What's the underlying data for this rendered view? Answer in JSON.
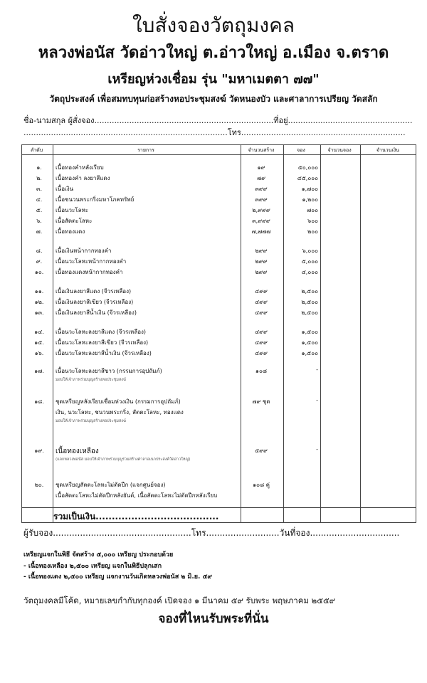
{
  "header": {
    "title": "ใบสั่งจองวัตถุมงคล",
    "subtitle": "หลวงพ่อนัส วัดอ่าวใหญ่ ต.อ่าวใหญ่ อ.เมือง จ.ตราด",
    "edition": "เหรียญห่วงเชื่อม  รุ่น \"มหาเมตตา ๗๗\"",
    "purpose": "วัตถุประสงค์ เพื่อสมทบทุนก่อสร้างหอประชุมสงฆ์ วัดหนองบัว  และศาลาการเปรียญ วัดสลัก"
  },
  "form": {
    "name_line": "ชื่อ-นามสกุล ผู้สั่งจอง........................................................................ที่อยู่..................................................",
    "phone_line": "..................................................................................โทร.................................................................."
  },
  "table": {
    "columns": [
      "ลำดับ",
      "รายการ",
      "จำนวนสร้าง",
      "จอง",
      "จำนวนจอง",
      "จำนวนเงิน"
    ],
    "rows": [
      {
        "no": "๑.",
        "item": "เนื้อทองคำหลังเรียบ",
        "qty": "๑๙",
        "price": "๕๐,๐๐๐"
      },
      {
        "no": "๒.",
        "item": "เนื้อทองคำ ลงยาสีแดง",
        "qty": "๗๙",
        "price": "๔๕,๐๐๐"
      },
      {
        "no": "๓.",
        "item": "เนื้อเงิน",
        "qty": "๓๙๙",
        "price": "๑,๗๐๐"
      },
      {
        "no": "๔.",
        "item": "เนื้อชนวนพระกริ่งมหาโภคทรัพย์",
        "qty": "๓๙๙",
        "price": "๑,๒๐๐"
      },
      {
        "no": "๕.",
        "item": "เนื้อนวะโลหะ",
        "qty": "๒,๙๙๙",
        "price": "๗๐๐"
      },
      {
        "no": "๖.",
        "item": "เนื้อสัตตะโลหะ",
        "qty": "๓,๙๙๙",
        "price": "๖๐๐"
      },
      {
        "no": "๗.",
        "item": "เนื้อทองแดง",
        "qty": "๗,๗๗๗",
        "price": "๒๐๐"
      },
      {
        "no": "๘.",
        "item": "เนื้อเงินหน้ากากทองคำ",
        "qty": "๒๙๙",
        "price": "๖,๐๐๐"
      },
      {
        "no": "๙.",
        "item": "เนื้อนวะโลหะหน้ากากทองคำ",
        "qty": "๒๙๙",
        "price": "๕,๐๐๐"
      },
      {
        "no": "๑๐.",
        "item": "เนื้อทองแดงหน้ากากทองคำ",
        "qty": "๒๙๙",
        "price": "๔,๐๐๐"
      },
      {
        "no": "๑๑.",
        "item": "เนื้อเงินลงยาสีแดง (จีวรเหลือง)",
        "qty": "๔๙๙",
        "price": "๒,๕๐๐"
      },
      {
        "no": "๑๒.",
        "item": "เนื้อเงินลงยาสีเขียว (จีวรเหลือง)",
        "qty": "๔๙๙",
        "price": "๒,๕๐๐"
      },
      {
        "no": "๑๓.",
        "item": "เนื้อเงินลงยาสีน้ำเงิน (จีวรเหลือง)",
        "qty": "๔๙๙",
        "price": "๒,๕๐๐"
      },
      {
        "no": "๑๔.",
        "item": "เนื้อนวะโลหะลงยาสีแดง (จีวรเหลือง)",
        "qty": "๔๙๙",
        "price": "๑,๕๐๐"
      },
      {
        "no": "๑๕.",
        "item": "เนื้อนวะโลหะลงยาสีเขียว (จีวรเหลือง)",
        "qty": "๔๙๙",
        "price": "๑,๕๐๐"
      },
      {
        "no": "๑๖.",
        "item": "เนื้อนวะโลหะลงยาสีน้ำเงิน (จีวรเหลือง)",
        "qty": "๔๙๙",
        "price": "๑,๕๐๐"
      },
      {
        "no": "๑๗.",
        "item": "เนื้อนวะโลหะลงยาสีขาว (กรรมการอุปถัมภ์)",
        "qty": "๑๐๘",
        "price": "-",
        "note": "มอบให้เจ้าภาพร่วมบุญสร้างหอประชุมสงฆ์"
      },
      {
        "no": "๑๘.",
        "item": "ชุดเหรียญหลังเรียบเชื่อมห่วงเงิน (กรรมการอุปถัมภ์)",
        "qty": "๗๙ ชุด",
        "price": "-",
        "sub": "เงิน, นวะโลหะ, ชนวนพระกริ่ง, สัตตะโลหะ, ทองแดง",
        "note": "มอบให้เจ้าภาพร่วมบุญสร้างหอประชุมสงฆ์"
      },
      {
        "no": "๑๙.",
        "item": "เนื้อทองเหลือง",
        "qty": "๕๙๙",
        "price": "-",
        "note": "(แจกหลวงพ่อนัส มอบให้เจ้าภาพร่วมบุญร่วมสร้างศาลาอเนกประสงค์วัดอ่าวใหญ่)"
      },
      {
        "no": "๒๐.",
        "item": "ชุดเหรียญสัตตะโลหะไม่ตัดปีก (แจกศูนย์จอง)",
        "qty": "๑๐๘ คู่",
        "price": "",
        "sub": "เนื้อสัตตะโลหะไม่ตัดปีกหลังยันต์, เนื้อสัตตะโลหะไม่ตัดปีกหลังเรียบ"
      }
    ],
    "total_label": "รวมเป็นเงิน......................................"
  },
  "receiver_line": "ผู้รับจอง...................................................โทร...........................วันที่จอง.................................",
  "notes": {
    "heading": "เหรียญแจกในพิธี  จัดสร้าง ๕,๐๐๐ เหรียญ ประกอบด้วย",
    "items": [
      "-  เนื้อทองเหลือง ๒,๕๐๐ เหรียญ แจกในพิธีปลุกเสก",
      "-  เนื้อทองแดง ๒,๕๐๐ เหรียญ แจกงานวันเกิดหลวงพ่อนัส ๒ มิ.ย. ๕๙"
    ]
  },
  "footer": {
    "info": "วัตถุมงคลมีโค้ด, หมายเลขกำกับทุกองค์  เปิดจอง ๑ มีนาคม ๕๙ รับพระ พฤษภาคม ๒๕๕๙",
    "slogan": "จองที่ไหนรับพระที่นั่น"
  }
}
